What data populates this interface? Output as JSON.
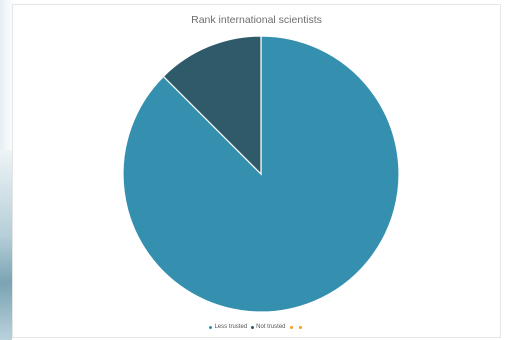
{
  "chart_data": {
    "type": "pie",
    "title": "Rank international scientists",
    "slices": [
      {
        "label": "Less trusted",
        "value": 87.5,
        "color": "#3590b0"
      },
      {
        "label": "Not trusted",
        "value": 12.5,
        "color": "#2e5a6a"
      },
      {
        "label": "",
        "value": 0,
        "color": "#f2a317"
      },
      {
        "label": "",
        "value": 0,
        "color": "#f2a317"
      }
    ],
    "start": "top",
    "direction": "clockwise",
    "legend_position": "bottom"
  }
}
